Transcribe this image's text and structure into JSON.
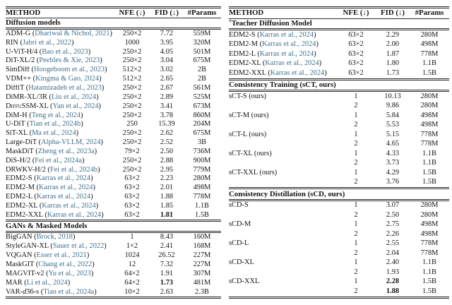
{
  "columns": {
    "method": "METHOD",
    "nfe": "NFE (↓)",
    "fid": "FID (↓)",
    "params": "#Params"
  },
  "colors": {
    "citation": "#40708f",
    "rule": "#2b2b2b",
    "text": "#141414",
    "background": "#ffffff"
  },
  "left_table": {
    "sections": [
      {
        "title": "Diffusion models",
        "rows": [
          {
            "method": "ADM-G",
            "cite": "Dhariwal & Nichol, 2021",
            "nfe": "250×2",
            "fid": "7.72",
            "params": "559M"
          },
          {
            "method": "RIN",
            "cite": "Jabri et al., 2022",
            "nfe": "1000",
            "fid": "3.95",
            "params": "320M"
          },
          {
            "method": "U-ViT-H/4",
            "cite": "Bao et al., 2023",
            "nfe": "250×2",
            "fid": "4.05",
            "params": "501M"
          },
          {
            "method": "DiT-XL/2",
            "cite": "Peebles & Xie, 2023",
            "nfe": "250×2",
            "fid": "3.04",
            "params": "675M"
          },
          {
            "method": "SimDiff",
            "cite": "Hoogeboom et al., 2023",
            "nfe": "512×2",
            "fid": "3.02",
            "params": "2B"
          },
          {
            "method": "VDM++",
            "cite": "Kingma & Gao, 2024",
            "nfe": "512×2",
            "fid": "2.65",
            "params": "2B"
          },
          {
            "method": "DiffiT",
            "cite": "Hatamizadeh et al., 2023",
            "nfe": "250×2",
            "fid": "2.67",
            "params": "561M"
          },
          {
            "method": "DiMR-XL/3R",
            "cite": "Liu et al., 2024",
            "nfe": "250×2",
            "fid": "2.89",
            "params": "525M"
          },
          {
            "method": "DiffuSSM-XL",
            "method_parts": [
              {
                "t": "D"
              },
              {
                "t": "iffu",
                "sc": true
              },
              {
                "t": "SSM-XL"
              }
            ],
            "cite": "Yan et al., 2024",
            "nfe": "250×2",
            "fid": "3.41",
            "params": "673M"
          },
          {
            "method": "DiM-H",
            "cite": "Teng et al., 2024",
            "nfe": "250×2",
            "fid": "3.78",
            "params": "860M"
          },
          {
            "method": "U-DiT",
            "cite": "Tian et al., 2024b",
            "nfe": "250",
            "fid": "15.39",
            "params": "204M"
          },
          {
            "method": "SiT-XL",
            "cite": "Ma et al., 2024",
            "nfe": "250×2",
            "fid": "2.62",
            "params": "675M"
          },
          {
            "method": "Large-DiT",
            "cite": "Alpha-VLLM, 2024",
            "nfe": "250×2",
            "fid": "2.52",
            "params": "3B"
          },
          {
            "method": "MaskDiT",
            "cite": "Zheng et al., 2023a",
            "nfe": "79×2",
            "fid": "2.50",
            "params": "736M"
          },
          {
            "method": "DiS-H/2",
            "cite": "Fei et al., 2024a",
            "nfe": "250×2",
            "fid": "2.88",
            "params": "900M"
          },
          {
            "method": "DRWKV-H/2",
            "cite": "Fei et al., 2024b",
            "nfe": "250×2",
            "fid": "2.95",
            "params": "779M"
          },
          {
            "method": "EDM2-S",
            "cite": "Karras et al., 2024",
            "nfe": "63×2",
            "fid": "2.23",
            "params": "280M"
          },
          {
            "method": "EDM2-M",
            "cite": "Karras et al., 2024",
            "nfe": "63×2",
            "fid": "2.01",
            "params": "498M"
          },
          {
            "method": "EDM2-L",
            "cite": "Karras et al., 2024",
            "nfe": "63×2",
            "fid": "1.88",
            "params": "778M"
          },
          {
            "method": "EDM2-XL",
            "cite": "Karras et al., 2024",
            "nfe": "63×2",
            "fid": "1.85",
            "params": "1.1B"
          },
          {
            "method": "EDM2-XXL",
            "cite": "Karras et al., 2024",
            "nfe": "63×2",
            "fid": "1.81",
            "fid_bold": true,
            "params": "1.5B"
          }
        ]
      },
      {
        "title": "GANs & Masked Models",
        "rows": [
          {
            "method": "BigGAN",
            "cite": "Brock, 2018",
            "nfe": "1",
            "fid": "8.43",
            "params": "160M"
          },
          {
            "method": "StyleGAN-XL",
            "cite": "Sauer et al., 2022",
            "nfe": "1×2",
            "fid": "2.41",
            "params": "168M"
          },
          {
            "method": "VQGAN",
            "cite": "Esser et al., 2021",
            "nfe": "1024",
            "fid": "26.52",
            "params": "227M"
          },
          {
            "method": "MaskGIT",
            "cite": "Chang et al., 2022",
            "nfe": "12",
            "fid": "7.32",
            "params": "227M"
          },
          {
            "method": "MAGVIT-v2",
            "cite": "Yu et al., 2023",
            "nfe": "64×2",
            "fid": "1.91",
            "params": "307M"
          },
          {
            "method": "MAR",
            "cite": "Li et al., 2024",
            "nfe": "64×2",
            "fid": "1.73",
            "fid_bold": true,
            "params": "481M"
          },
          {
            "method": "VAR-d36-s",
            "method_parts": [
              {
                "t": "VAR-"
              },
              {
                "t": "d",
                "it": true
              },
              {
                "t": "36-s"
              }
            ],
            "cite": "Tian et al., 2024a",
            "nfe": "10×2",
            "fid": "2.63",
            "params": "2.3B"
          }
        ]
      }
    ]
  },
  "right_table": {
    "sections": [
      {
        "sup": "†",
        "title": "Teacher Diffusion Model",
        "rows": [
          {
            "method": "EDM2-S",
            "cite": "Karras et al., 2024",
            "nfe": "63×2",
            "fid": "2.29",
            "params": "280M"
          },
          {
            "method": "EDM2-M",
            "cite": "Karras et al., 2024",
            "nfe": "63×2",
            "fid": "2.00",
            "params": "498M"
          },
          {
            "method": "EDM2-L",
            "cite": "Karras et al., 2024",
            "nfe": "63×2",
            "fid": "1.87",
            "params": "778M"
          },
          {
            "method": "EDM2-XL",
            "cite": "Karras et al., 2024",
            "nfe": "63×2",
            "fid": "1.80",
            "params": "1.1B"
          },
          {
            "method": "EDM2-XXL",
            "cite": "Karras et al., 2024",
            "nfe": "63×2",
            "fid": "1.73",
            "params": "1.5B"
          }
        ]
      },
      {
        "title": "Consistency Training (sCT, ours)",
        "rows": [
          {
            "method": "sCT-S (ours)",
            "nfe": "1",
            "fid": "10.13",
            "params": "280M"
          },
          {
            "method": "",
            "nfe": "2",
            "fid": "9.86",
            "params": "280M"
          },
          {
            "method": "sCT-M (ours)",
            "nfe": "1",
            "fid": "5.84",
            "params": "498M"
          },
          {
            "method": "",
            "nfe": "2",
            "fid": "5.53",
            "params": "498M"
          },
          {
            "method": "sCT-L (ours)",
            "nfe": "1",
            "fid": "5.15",
            "params": "778M"
          },
          {
            "method": "",
            "nfe": "2",
            "fid": "4.65",
            "params": "778M"
          },
          {
            "method": "sCT-XL (ours)",
            "nfe": "1",
            "fid": "4.33",
            "params": "1.1B"
          },
          {
            "method": "",
            "nfe": "2",
            "fid": "3.73",
            "params": "1.1B"
          },
          {
            "method": "sCT-XXL (ours)",
            "nfe": "1",
            "fid": "4.29",
            "params": "1.5B"
          },
          {
            "method": "",
            "nfe": "2",
            "fid": "3.76",
            "params": "1.5B"
          }
        ]
      },
      {
        "title": "Consistency Distillation (sCD, ours)",
        "rows": [
          {
            "method": "sCD-S",
            "nfe": "1",
            "fid": "3.07",
            "params": "280M"
          },
          {
            "method": "",
            "nfe": "2",
            "fid": "2.50",
            "params": "280M"
          },
          {
            "method": "sCD-M",
            "nfe": "1",
            "fid": "2.75",
            "params": "498M"
          },
          {
            "method": "",
            "nfe": "2",
            "fid": "2.26",
            "params": "498M"
          },
          {
            "method": "sCD-L",
            "nfe": "1",
            "fid": "2.55",
            "params": "778M"
          },
          {
            "method": "",
            "nfe": "2",
            "fid": "2.04",
            "params": "778M"
          },
          {
            "method": "sCD-XL",
            "nfe": "1",
            "fid": "2.40",
            "params": "1.1B"
          },
          {
            "method": "",
            "nfe": "2",
            "fid": "1.93",
            "params": "1.1B"
          },
          {
            "method": "sCD-XXL",
            "nfe": "1",
            "fid": "2.28",
            "fid_bold": true,
            "params": "1.5B"
          },
          {
            "method": "",
            "nfe": "2",
            "fid": "1.88",
            "fid_bold": true,
            "params": "1.5B"
          }
        ]
      }
    ]
  }
}
